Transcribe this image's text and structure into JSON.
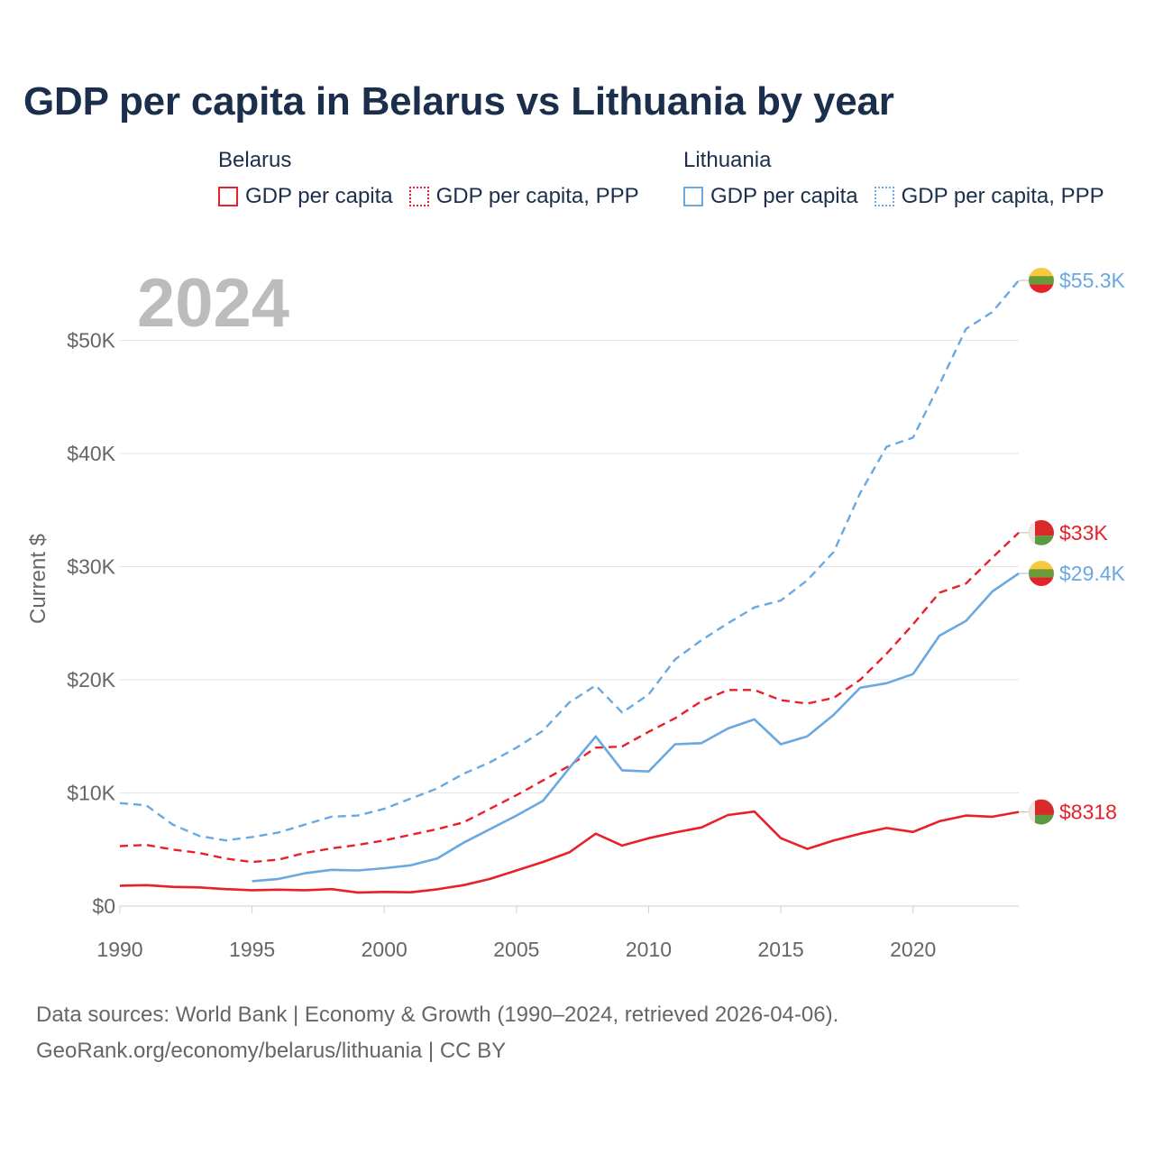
{
  "title": "GDP per capita in Belarus vs Lithuania by year",
  "legend": {
    "groups": [
      {
        "name": "Belarus",
        "items": [
          {
            "label": "GDP per capita",
            "style": "solid",
            "color": "#e8202a"
          },
          {
            "label": "GDP per capita, PPP",
            "style": "dotted",
            "color": "#e8202a"
          }
        ]
      },
      {
        "name": "Lithuania",
        "items": [
          {
            "label": "GDP per capita",
            "style": "solid",
            "color": "#6aa8e2"
          },
          {
            "label": "GDP per capita, PPP",
            "style": "dotted",
            "color": "#6aa8e2"
          }
        ]
      }
    ]
  },
  "chart_data": {
    "type": "line",
    "year_label": "2024",
    "ylabel": "Current $",
    "xlim": [
      1990,
      2024
    ],
    "ylim": [
      0,
      55300
    ],
    "x_ticks": [
      1990,
      1995,
      2000,
      2005,
      2010,
      2015,
      2020
    ],
    "x_tick_labels": [
      "1990",
      "1995",
      "2000",
      "2005",
      "2010",
      "2015",
      "2020"
    ],
    "y_ticks": [
      0,
      10000,
      20000,
      30000,
      40000,
      50000
    ],
    "y_tick_labels": [
      "$0",
      "$10K",
      "$20K",
      "$30K",
      "$40K",
      "$50K"
    ],
    "series": [
      {
        "name": "Lithuania GDP per capita, PPP",
        "country": "Lithuania",
        "color": "#6aa8e2",
        "dashed": true,
        "end_label": "$55.3K",
        "x": [
          1990,
          1991,
          1992,
          1993,
          1994,
          1995,
          1996,
          1997,
          1998,
          1999,
          2000,
          2001,
          2002,
          2003,
          2004,
          2005,
          2006,
          2007,
          2008,
          2009,
          2010,
          2011,
          2012,
          2013,
          2014,
          2015,
          2016,
          2017,
          2018,
          2019,
          2020,
          2021,
          2022,
          2023,
          2024
        ],
        "values": [
          9100,
          8900,
          7200,
          6200,
          5800,
          6100,
          6500,
          7200,
          7900,
          8000,
          8600,
          9500,
          10400,
          11700,
          12700,
          14000,
          15500,
          18000,
          19500,
          17100,
          18700,
          21800,
          23500,
          25000,
          26400,
          27000,
          28800,
          31300,
          36500,
          40600,
          41400,
          46100,
          51000,
          52500,
          55300
        ]
      },
      {
        "name": "Belarus GDP per capita, PPP",
        "country": "Belarus",
        "color": "#e8202a",
        "dashed": true,
        "end_label": "$33K",
        "x": [
          1990,
          1991,
          1992,
          1993,
          1994,
          1995,
          1996,
          1997,
          1998,
          1999,
          2000,
          2001,
          2002,
          2003,
          2004,
          2005,
          2006,
          2007,
          2008,
          2009,
          2010,
          2011,
          2012,
          2013,
          2014,
          2015,
          2016,
          2017,
          2018,
          2019,
          2020,
          2021,
          2022,
          2023,
          2024
        ],
        "values": [
          5300,
          5400,
          5000,
          4700,
          4200,
          3900,
          4100,
          4700,
          5100,
          5400,
          5800,
          6300,
          6800,
          7400,
          8600,
          9800,
          11100,
          12400,
          14000,
          14100,
          15400,
          16600,
          18100,
          19100,
          19100,
          18200,
          17900,
          18400,
          20000,
          22300,
          24900,
          27700,
          28500,
          30800,
          33000
        ]
      },
      {
        "name": "Lithuania GDP per capita",
        "country": "Lithuania",
        "color": "#6aa8e2",
        "dashed": false,
        "end_label": "$29.4K",
        "x": [
          1995,
          1996,
          1997,
          1998,
          1999,
          2000,
          2001,
          2002,
          2003,
          2004,
          2005,
          2006,
          2007,
          2008,
          2009,
          2010,
          2011,
          2012,
          2013,
          2014,
          2015,
          2016,
          2017,
          2018,
          2019,
          2020,
          2021,
          2022,
          2023,
          2024
        ],
        "values": [
          2200,
          2400,
          2900,
          3200,
          3150,
          3350,
          3600,
          4200,
          5600,
          6800,
          8000,
          9300,
          12200,
          15000,
          12000,
          11900,
          14300,
          14400,
          15700,
          16500,
          14300,
          15000,
          16900,
          19300,
          19700,
          20500,
          23900,
          25200,
          27800,
          29400
        ]
      },
      {
        "name": "Belarus GDP per capita",
        "country": "Belarus",
        "color": "#e8202a",
        "dashed": false,
        "end_label": "$8318",
        "x": [
          1990,
          1991,
          1992,
          1993,
          1994,
          1995,
          1996,
          1997,
          1998,
          1999,
          2000,
          2001,
          2002,
          2003,
          2004,
          2005,
          2006,
          2007,
          2008,
          2009,
          2010,
          2011,
          2012,
          2013,
          2014,
          2015,
          2016,
          2017,
          2018,
          2019,
          2020,
          2021,
          2022,
          2023,
          2024
        ],
        "values": [
          1800,
          1850,
          1700,
          1650,
          1500,
          1400,
          1450,
          1400,
          1500,
          1200,
          1250,
          1220,
          1480,
          1850,
          2400,
          3150,
          3900,
          4750,
          6400,
          5350,
          6000,
          6500,
          6950,
          8050,
          8350,
          6000,
          5050,
          5800,
          6400,
          6900,
          6550,
          7500,
          8000,
          7900,
          8318
        ]
      }
    ]
  },
  "sources": {
    "line1": "Data sources: World Bank | Economy & Growth (1990–2024, retrieved 2026-04-06).",
    "line2": "GeoRank.org/economy/belarus/lithuania | CC BY"
  }
}
